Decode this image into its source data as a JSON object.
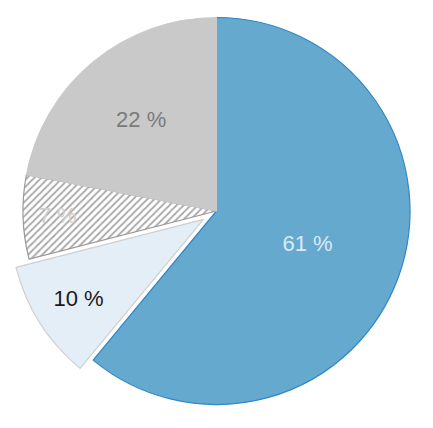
{
  "chart_data": {
    "type": "pie",
    "values": [
      61,
      10,
      7,
      22
    ],
    "value_labels": [
      "61 %",
      "10 %",
      "7 %",
      "22 %"
    ],
    "colors": [
      "#66a9cf",
      "#e4eef6",
      "#7a7a7a",
      "#c9c9c9"
    ],
    "data_labels": true
  }
}
